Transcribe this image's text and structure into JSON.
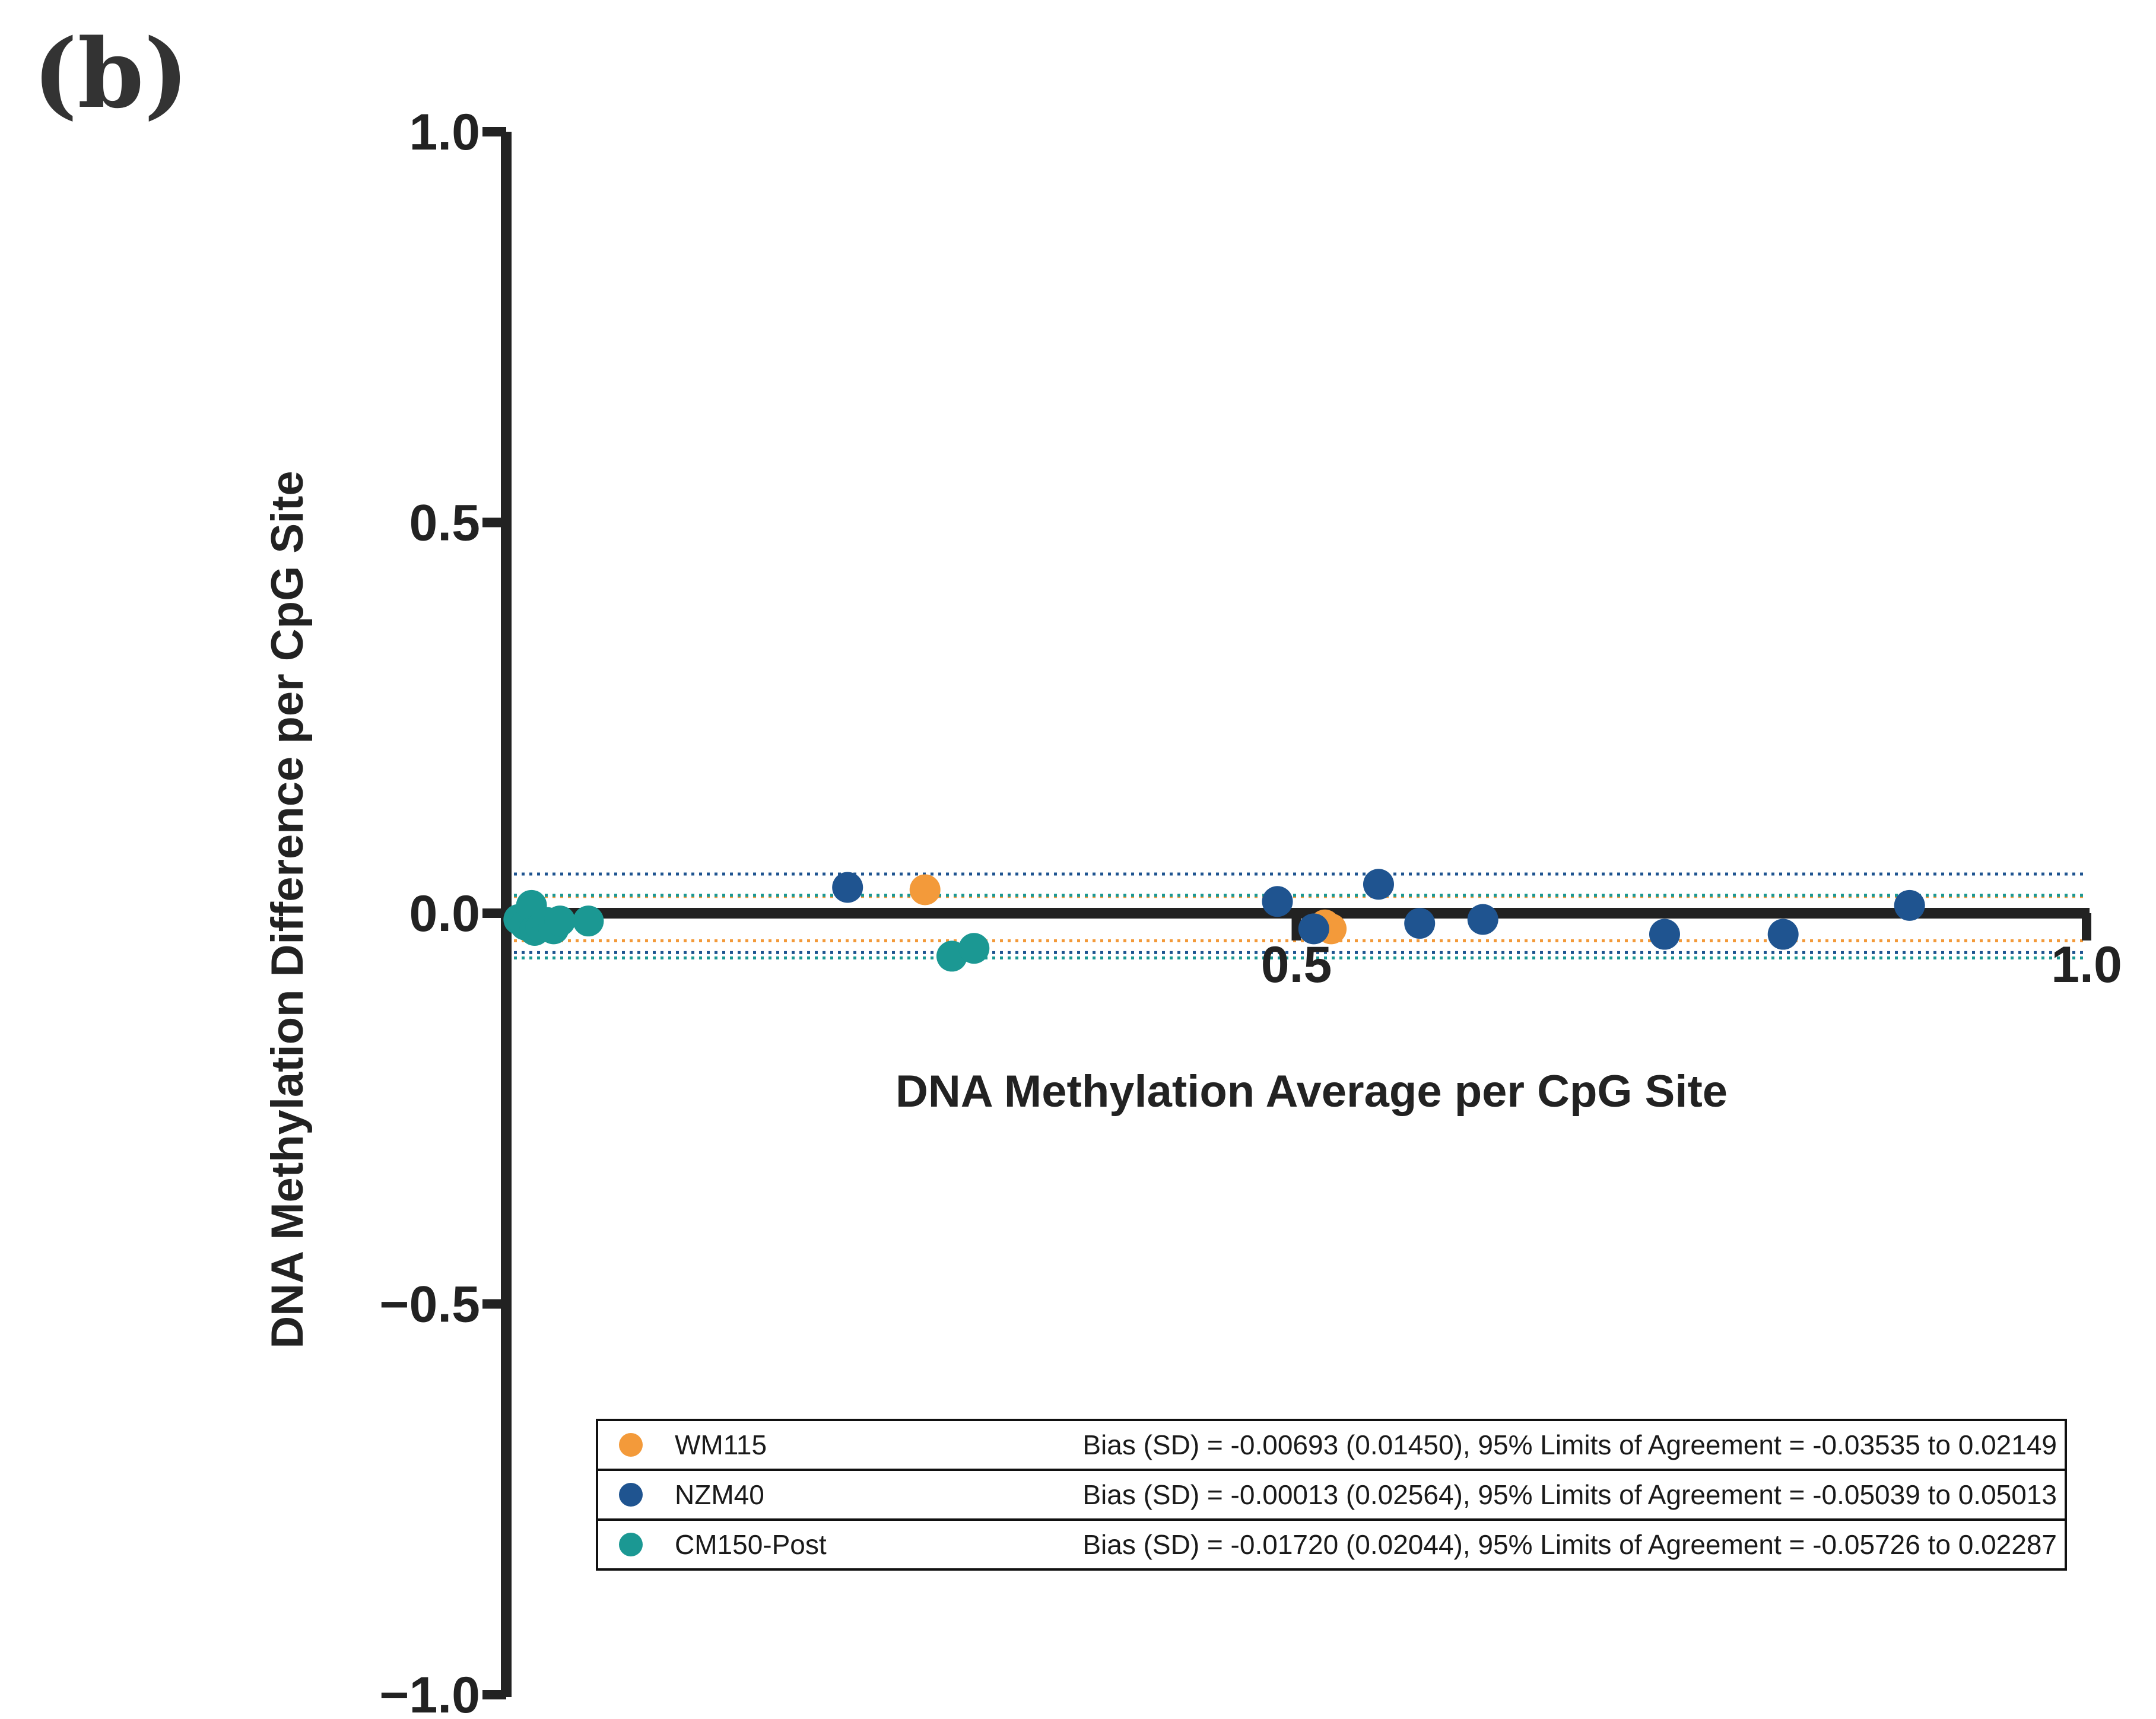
{
  "panel_label": "(b)",
  "chart_data": {
    "type": "scatter",
    "title": "",
    "xlabel": "DNA Methylation Average per CpG Site",
    "ylabel": "DNA Methylation Difference per CpG Site",
    "xlim": [
      0,
      1.0
    ],
    "ylim": [
      -1.0,
      1.0
    ],
    "xticks": [
      0.5,
      1.0
    ],
    "xtick_labels": [
      "0.5",
      "1.0"
    ],
    "yticks": [
      1.0,
      0.5,
      0.0,
      -0.5,
      -1.0
    ],
    "ytick_labels": [
      "1.0",
      "0.5",
      "0.0",
      "−0.5",
      "−1.0"
    ],
    "grid": false,
    "legend_position": "bottom-right",
    "series": [
      {
        "name": "WM115",
        "color": "#F39A3A",
        "bias_text": "Bias (SD) = -0.00693 (0.01450), 95% Limits of Agreement = -0.03535 to 0.02149",
        "bias": -0.00693,
        "loa": [
          -0.03535,
          0.02149
        ],
        "points": [
          {
            "x": 0.265,
            "y": 0.03
          },
          {
            "x": 0.518,
            "y": -0.015
          },
          {
            "x": 0.522,
            "y": -0.02
          },
          {
            "x": 0.02,
            "y": -0.01
          }
        ]
      },
      {
        "name": "NZM40",
        "color": "#1F5490",
        "bias_text": "Bias (SD) = -0.00013 (0.02564), 95% Limits of Agreement = -0.05039 to 0.05013",
        "bias": -0.00013,
        "loa": [
          -0.05039,
          0.05013
        ],
        "points": [
          {
            "x": 0.216,
            "y": 0.033
          },
          {
            "x": 0.488,
            "y": 0.015
          },
          {
            "x": 0.511,
            "y": -0.02
          },
          {
            "x": 0.552,
            "y": 0.037
          },
          {
            "x": 0.578,
            "y": -0.013
          },
          {
            "x": 0.618,
            "y": -0.008
          },
          {
            "x": 0.733,
            "y": -0.027
          },
          {
            "x": 0.808,
            "y": -0.027
          },
          {
            "x": 0.888,
            "y": 0.01
          }
        ]
      },
      {
        "name": "CM150-Post",
        "color": "#1B9893",
        "bias_text": "Bias (SD) = -0.01720 (0.02044), 95% Limits of Agreement = -0.05726 to 0.02287",
        "bias": -0.0172,
        "loa": [
          -0.05726,
          0.02287
        ],
        "points": [
          {
            "x": 0.008,
            "y": -0.008
          },
          {
            "x": 0.012,
            "y": -0.015
          },
          {
            "x": 0.016,
            "y": 0.01
          },
          {
            "x": 0.018,
            "y": -0.022
          },
          {
            "x": 0.022,
            "y": -0.018
          },
          {
            "x": 0.026,
            "y": -0.012
          },
          {
            "x": 0.03,
            "y": -0.02
          },
          {
            "x": 0.034,
            "y": -0.01
          },
          {
            "x": 0.052,
            "y": -0.01
          },
          {
            "x": 0.282,
            "y": -0.055
          },
          {
            "x": 0.296,
            "y": -0.045
          }
        ]
      }
    ]
  }
}
